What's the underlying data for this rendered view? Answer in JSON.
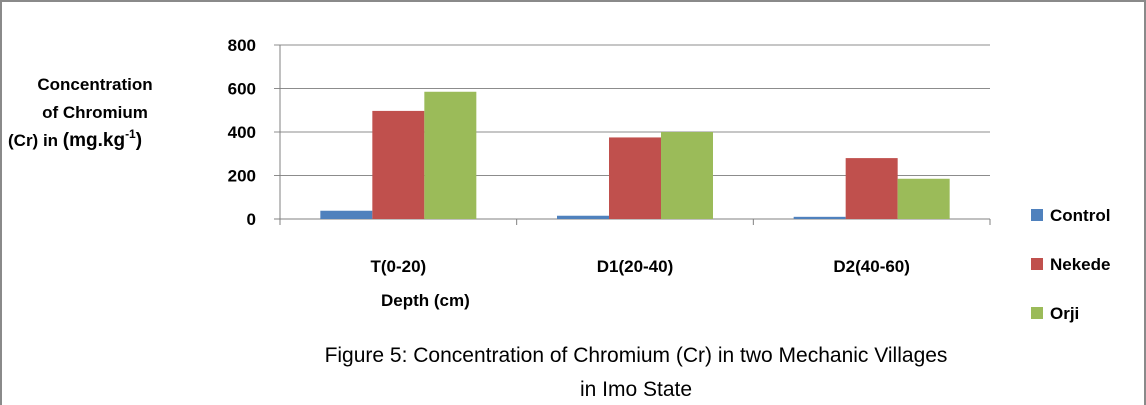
{
  "chart_data": {
    "type": "bar",
    "title_lines": [
      "Figure 5: Concentration of Chromium (Cr) in two Mechanic Villages",
      "in Imo State"
    ],
    "xlabel": "Depth  (cm)",
    "ylabel_lines": [
      "Concentration",
      "of Chromium",
      "(Cr) in"
    ],
    "ylabel_unit": "(mg.kg",
    "ylabel_unit_sup": "-1",
    "ylabel_unit_end": ")",
    "categories": [
      "T(0-20)",
      "D1(20-40)",
      "D2(40-60)"
    ],
    "ylim": [
      0,
      800
    ],
    "yticks": [
      0,
      200,
      400,
      600,
      800
    ],
    "grid": true,
    "legend_position": "right",
    "series": [
      {
        "name": "Control",
        "color": "#4f81bd",
        "values": [
          38,
          15,
          10
        ]
      },
      {
        "name": "Nekede",
        "color": "#c0504d",
        "values": [
          497,
          375,
          280
        ]
      },
      {
        "name": "Orji",
        "color": "#9bbb59",
        "values": [
          585,
          400,
          185
        ]
      }
    ]
  }
}
